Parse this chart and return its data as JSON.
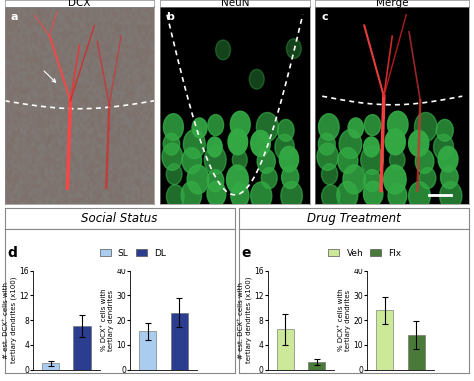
{
  "title_social": "Social Status",
  "title_drug": "Drug Treatment",
  "social_left_bars": {
    "values": [
      1.0,
      7.0
    ],
    "errors": [
      0.4,
      1.8
    ],
    "colors": [
      "#aaccee",
      "#2b3d8f"
    ],
    "ylabel": "# est. DCX⁺ cells with\ntertiary dendrites (x100)",
    "ylim": [
      0,
      16
    ],
    "yticks": [
      0,
      4,
      8,
      12,
      16
    ]
  },
  "social_right_bars": {
    "values": [
      15.5,
      23.0
    ],
    "errors": [
      3.5,
      6.0
    ],
    "colors": [
      "#aaccee",
      "#2b3d8f"
    ],
    "ylabel": "% DCX⁺ cells with\ntertiary dendrites",
    "ylim": [
      0,
      40
    ],
    "yticks": [
      0,
      10,
      20,
      30,
      40
    ]
  },
  "drug_left_bars": {
    "values": [
      6.5,
      1.2
    ],
    "errors": [
      2.5,
      0.5
    ],
    "colors": [
      "#cce899",
      "#4a7a3a"
    ],
    "ylabel": "# est. DCX⁺ cells with\ntertiary dendrites (x100)",
    "ylim": [
      0,
      16
    ],
    "yticks": [
      0,
      4,
      8,
      12,
      16
    ]
  },
  "drug_right_bars": {
    "values": [
      24.0,
      14.0
    ],
    "errors": [
      5.5,
      5.5
    ],
    "colors": [
      "#cce899",
      "#4a7a3a"
    ],
    "ylabel": "% DCX⁺ cells with\ntertiary dendrites",
    "ylim": [
      0,
      40
    ],
    "yticks": [
      0,
      10,
      20,
      30,
      40
    ]
  },
  "legend_social": {
    "labels": [
      "SL",
      "DL"
    ],
    "colors": [
      "#aaccee",
      "#2b3d8f"
    ]
  },
  "legend_drug": {
    "labels": [
      "Veh",
      "Flx"
    ],
    "colors": [
      "#cce899",
      "#4a7a3a"
    ]
  },
  "image_panel_titles": [
    "DCX",
    "NeuN",
    "Merge"
  ],
  "image_panel_labels": [
    "a",
    "b",
    "c"
  ],
  "bar_width": 0.55
}
